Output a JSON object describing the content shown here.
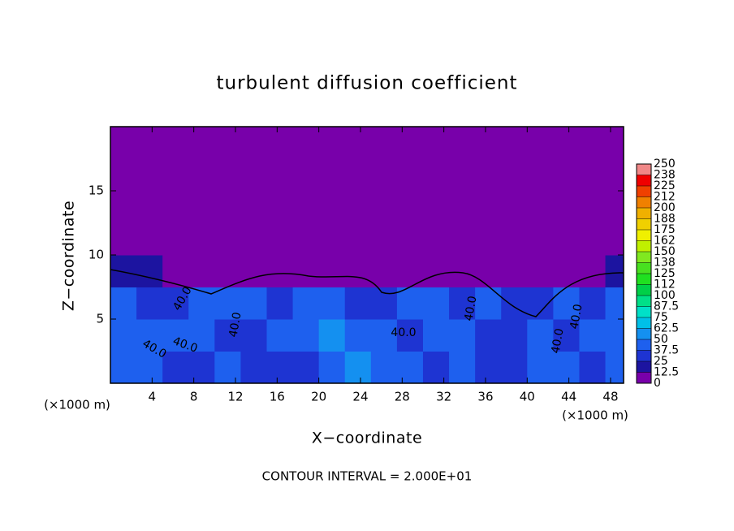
{
  "chart_data": {
    "type": "heatmap",
    "title": "turbulent diffusion coefficient",
    "x_label": "X−coordinate",
    "y_label": "Z−coordinate",
    "x_unit_left": "(×1000 m)",
    "x_unit_right": "(×1000 m)",
    "footer": "CONTOUR INTERVAL = 2.000E+01",
    "contour_labels": [
      "40.0",
      "40.0",
      "40.0",
      "40.0",
      "40.0",
      "40.0",
      "40.0",
      "40.0"
    ],
    "xlim": [
      0,
      49.25
    ],
    "ylim": [
      0,
      20
    ],
    "xticks": [
      4,
      8,
      12,
      16,
      20,
      24,
      28,
      32,
      36,
      40,
      44,
      48
    ],
    "yticks": [
      5,
      10,
      15
    ],
    "x": [
      1.25,
      3.75,
      6.25,
      8.75,
      11.25,
      13.75,
      16.25,
      18.75,
      21.25,
      23.75,
      26.25,
      28.75,
      31.25,
      33.75,
      36.25,
      38.75,
      41.25,
      43.75,
      46.25,
      48.75
    ],
    "z": [
      1.25,
      3.75,
      6.25,
      8.75,
      11.25,
      13.75,
      16.25,
      18.75
    ],
    "values": [
      [
        40,
        45,
        30,
        35,
        40,
        35,
        30,
        35,
        45,
        50,
        45,
        40,
        35,
        45,
        30,
        35,
        40,
        45,
        35,
        40
      ],
      [
        40,
        45,
        40,
        45,
        30,
        35,
        40,
        45,
        50,
        40,
        45,
        30,
        40,
        45,
        35,
        30,
        40,
        35,
        40,
        45
      ],
      [
        40,
        35,
        35,
        45,
        40,
        40,
        35,
        40,
        45,
        25,
        30,
        40,
        45,
        35,
        40,
        35,
        35,
        40,
        35,
        40
      ],
      [
        20,
        15,
        5,
        5,
        5,
        5,
        5,
        5,
        5,
        5,
        5,
        5,
        10,
        10,
        5,
        5,
        5,
        5,
        10,
        15
      ],
      [
        0,
        0,
        0,
        0,
        0,
        0,
        0,
        0,
        0,
        0,
        0,
        0,
        0,
        0,
        0,
        0,
        0,
        0,
        0,
        0
      ],
      [
        0,
        0,
        0,
        0,
        0,
        0,
        0,
        0,
        0,
        0,
        0,
        0,
        0,
        0,
        0,
        0,
        0,
        0,
        0,
        0
      ],
      [
        0,
        0,
        0,
        0,
        0,
        0,
        0,
        0,
        0,
        0,
        0,
        0,
        0,
        0,
        0,
        0,
        0,
        0,
        0,
        0
      ],
      [
        0,
        0,
        0,
        0,
        0,
        0,
        0,
        0,
        0,
        0,
        0,
        0,
        0,
        0,
        0,
        0,
        0,
        0,
        0,
        0
      ]
    ],
    "levels": [
      0,
      12.5,
      25,
      37.5,
      50,
      62.5,
      75,
      87.5,
      100,
      {
        "value": 112.5,
        "label": "112"
      },
      125,
      {
        "value": 137.5,
        "label": "138"
      },
      150,
      {
        "value": 162.5,
        "label": "162"
      },
      175,
      {
        "value": 187.5,
        "label": "188"
      },
      200,
      {
        "value": 212.5,
        "label": "212"
      },
      225,
      {
        "value": 237.5,
        "label": "238"
      },
      250
    ],
    "colors": [
      "#7800aa",
      "#1c14a0",
      "#1e34d2",
      "#1e60ee",
      "#1490f0",
      "#00c0e8",
      "#00e0c8",
      "#00e088",
      "#00d048",
      "#20e020",
      "#48e020",
      "#80e820",
      "#c0f000",
      "#f0f000",
      "#f0d000",
      "#f0b000",
      "#f08000",
      "#f04000",
      "#f00000",
      "#f08888"
    ]
  }
}
